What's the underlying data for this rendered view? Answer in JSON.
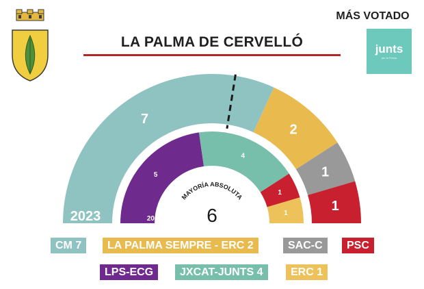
{
  "header": {
    "title": "LA PALMA DE CERVELLÓ",
    "most_voted_label": "MÁS VOTADO",
    "most_voted_logo": {
      "word": "junts",
      "tagline": "per la Palma",
      "color": "#6cc9bc"
    },
    "coat_of_arms": "municipal-coat-of-arms-icon"
  },
  "chart_data": [
    {
      "type": "pie",
      "subtype": "parliament-semicircle",
      "year_label": "2023",
      "total_seats": 11,
      "majority_label": "MAYORÍA ABSOLUTA",
      "majority_value": 6,
      "series": [
        {
          "name": "CM 7",
          "value": 7,
          "color": "#8fc3c2"
        },
        {
          "name": "LA PALMA SEMPRE - ERC 2",
          "value": 2,
          "color": "#e9bb4f"
        },
        {
          "name": "SAC-C",
          "value": 1,
          "color": "#999999"
        },
        {
          "name": "PSC",
          "value": 1,
          "color": "#c8202f"
        }
      ]
    },
    {
      "type": "pie",
      "subtype": "parliament-semicircle",
      "year_label": "2019",
      "total_seats": 11,
      "series": [
        {
          "name": "LPS-ECG",
          "value": 5,
          "color": "#6e2a8c"
        },
        {
          "name": "JXCAT-JUNTS 4",
          "value": 4,
          "color": "#77bfaa"
        },
        {
          "name": "PSC",
          "value": 1,
          "color": "#c8202f"
        },
        {
          "name": "ERC 1",
          "value": 1,
          "color": "#eec25a"
        }
      ]
    }
  ],
  "legend": [
    {
      "label": "CM 7",
      "color": "#8fc3c2"
    },
    {
      "label": "LA PALMA SEMPRE - ERC 2",
      "color": "#e9bb4f"
    },
    {
      "label": "SAC-C",
      "color": "#999999"
    },
    {
      "label": "PSC",
      "color": "#c8202f"
    },
    {
      "label": "LPS-ECG",
      "color": "#6e2a8c"
    },
    {
      "label": "JXCAT-JUNTS 4",
      "color": "#77bfaa"
    },
    {
      "label": "ERC 1",
      "color": "#eec25a"
    }
  ]
}
